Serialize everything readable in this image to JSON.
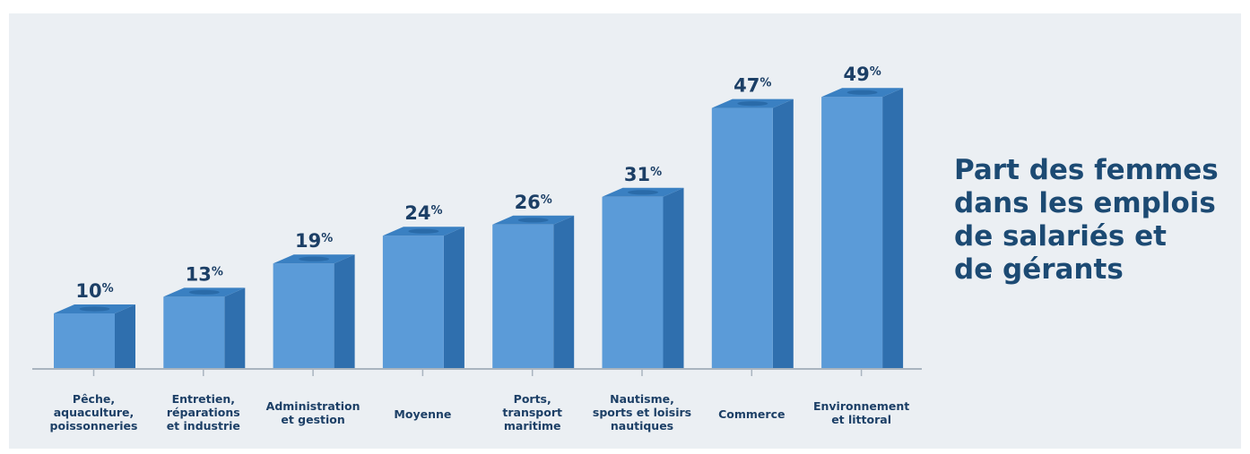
{
  "title_lines": [
    "Part des femmes",
    "dans les emplois",
    "de salariés et",
    "de gérants"
  ],
  "colors": {
    "background": "#ebeff3",
    "bar_front": "#5b9bd8",
    "bar_side": "#2f6fae",
    "bar_top": "#3a80c2",
    "value_text": "#1c3f66",
    "axis": "#a9b4bf",
    "title": "#1c4a73"
  },
  "chart_data": {
    "type": "bar",
    "style": "3d",
    "value_suffix": "%",
    "categories": [
      [
        "Pêche,",
        "aquaculture,",
        "poissonneries"
      ],
      [
        "Entretien,",
        "réparations",
        "et industrie"
      ],
      [
        "Administration",
        "et gestion"
      ],
      [
        "Moyenne"
      ],
      [
        "Ports,",
        "transport",
        "maritime"
      ],
      [
        "Nautisme,",
        "sports et loisirs",
        "nautiques"
      ],
      [
        "Commerce"
      ],
      [
        "Environnement",
        "et littoral"
      ]
    ],
    "values": [
      10,
      13,
      19,
      24,
      26,
      31,
      47,
      49
    ],
    "ylim": [
      0,
      50
    ],
    "grid": false,
    "legend": false
  }
}
